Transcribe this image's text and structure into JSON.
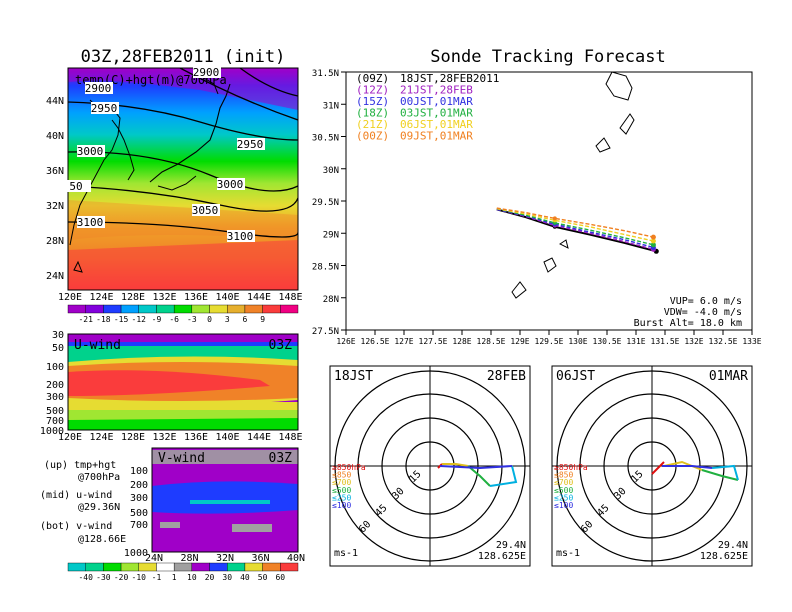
{
  "left_panel": {
    "title": "03Z,28FEB2011 (init)",
    "map_label": "temp(C)+hgt(m)@700hPa",
    "height_labels": [
      "2900",
      "2950",
      "2950",
      "3000",
      "3000",
      "3050",
      "3100",
      "3100",
      "50",
      "2900"
    ],
    "lat_ticks": [
      "44N",
      "40N",
      "36N",
      "32N",
      "28N",
      "24N"
    ],
    "lon_ticks": [
      "120E",
      "124E",
      "128E",
      "132E",
      "136E",
      "140E",
      "144E",
      "148E"
    ],
    "temp_colorbar": [
      "-21",
      "-18",
      "-15",
      "-12",
      "-9",
      "-6",
      "-3",
      "0",
      "3",
      "6",
      "9"
    ],
    "temp_colors": [
      "#a000c8",
      "#8200dc",
      "#1e3cff",
      "#00a0ff",
      "#00c8c8",
      "#00d28c",
      "#00dc00",
      "#a0e632",
      "#e6dc32",
      "#e6af2d",
      "#f08228",
      "#fa3c3c",
      "#f00082"
    ],
    "uwind_label": "U-wind",
    "uwind_time": "03Z",
    "uwind_levels": [
      "30",
      "50",
      "100",
      "200",
      "300",
      "500",
      "700",
      "1000"
    ],
    "uwind_lon_ticks": [
      "120E",
      "124E",
      "128E",
      "132E",
      "136E",
      "140E",
      "144E",
      "148E"
    ],
    "vwind_label": "V-wind",
    "vwind_time": "03Z",
    "vwind_levels": [
      "100",
      "200",
      "300",
      "500",
      "700",
      "1000"
    ],
    "vwind_lat_ticks": [
      "24N",
      "28N",
      "32N",
      "36N",
      "40N"
    ],
    "legend_lines": [
      "(up) tmp+hgt",
      "@700hPa",
      "(mid) u-wind",
      "@29.36N",
      "(bot) v-wind",
      "@128.66E"
    ],
    "wind_colorbar": [
      "-40",
      "-30",
      "-20",
      "-10",
      "-1",
      "1",
      "10",
      "20",
      "30",
      "40",
      "50",
      "60"
    ],
    "wind_colors": [
      "#00c8c8",
      "#00d28c",
      "#00dc00",
      "#a0e632",
      "#e6dc32",
      "#ffffff",
      "#a0a0a0",
      "#a000c8",
      "#1e3cff",
      "#00d28c",
      "#e6dc32",
      "#f08228",
      "#fa3c3c"
    ]
  },
  "tracking": {
    "title": "Sonde Tracking Forecast",
    "lat_ticks": [
      "31.5N",
      "31N",
      "30.5N",
      "30N",
      "29.5N",
      "29N",
      "28.5N",
      "28N",
      "27.5N"
    ],
    "lon_ticks": [
      "126E",
      "126.5E",
      "127E",
      "127.5E",
      "128E",
      "128.5E",
      "129E",
      "129.5E",
      "130E",
      "130.5E",
      "131E",
      "131.5E",
      "132E",
      "132.5E",
      "133E"
    ],
    "legend": [
      {
        "utc": "(09Z)",
        "local": "18JST,28FEB2011",
        "color": "#000000"
      },
      {
        "utc": "(12Z)",
        "local": "21JST,28FEB",
        "color": "#a020c0"
      },
      {
        "utc": "(15Z)",
        "local": "00JST,01MAR",
        "color": "#3030e0"
      },
      {
        "utc": "(18Z)",
        "local": "03JST,01MAR",
        "color": "#20b040"
      },
      {
        "utc": "(21Z)",
        "local": "06JST,01MAR",
        "color": "#f0d020"
      },
      {
        "utc": "(00Z)",
        "local": "09JST,01MAR",
        "color": "#f08020"
      }
    ],
    "params": [
      "VUP= 6.0 m/s",
      "VDW= -4.0 m/s",
      "Burst Alt= 18.0 km"
    ]
  },
  "hodographs": [
    {
      "left_label": "18JST",
      "right_label": "28FEB",
      "lat": "29.4N",
      "lon": "128.625E",
      "unit": "ms-1"
    },
    {
      "left_label": "06JST",
      "right_label": "01MAR",
      "lat": "29.4N",
      "lon": "128.625E",
      "unit": "ms-1"
    }
  ],
  "hodo_ring_labels": [
    "15",
    "30",
    "45",
    "60"
  ],
  "hodo_levels": [
    {
      "label": "≥850hPa",
      "color": "#e01010"
    },
    {
      "label": "≤850",
      "color": "#f08020"
    },
    {
      "label": "≤700",
      "color": "#e0c020"
    },
    {
      "label": "≤500",
      "color": "#20b040"
    },
    {
      "label": "≤250",
      "color": "#00b0e0"
    },
    {
      "label": "≤100",
      "color": "#3030e0"
    }
  ],
  "chart_data": {
    "type": "line",
    "title": "Sonde Tracking Forecast",
    "xlim": [
      126,
      133
    ],
    "ylim": [
      27.5,
      31.5
    ],
    "series": [
      {
        "name": "(09Z) 18JST,28FEB2011",
        "x": [
          128.6,
          129.1,
          129.6,
          130.2,
          130.8,
          131.35
        ],
        "y": [
          29.37,
          29.25,
          29.1,
          28.98,
          28.85,
          28.72
        ]
      },
      {
        "name": "(12Z) 21JST,28FEB",
        "x": [
          128.6,
          129.1,
          129.6,
          130.2,
          130.8,
          131.3
        ],
        "y": [
          29.37,
          29.26,
          29.12,
          29.0,
          28.87,
          28.75
        ]
      },
      {
        "name": "(15Z) 00JST,01MAR",
        "x": [
          128.6,
          129.1,
          129.6,
          130.2,
          130.8,
          131.3
        ],
        "y": [
          29.37,
          29.27,
          29.14,
          29.02,
          28.9,
          28.78
        ]
      },
      {
        "name": "(18Z) 03JST,01MAR",
        "x": [
          128.6,
          129.1,
          129.6,
          130.2,
          130.8,
          131.3
        ],
        "y": [
          29.38,
          29.28,
          29.16,
          29.05,
          28.93,
          28.82
        ]
      },
      {
        "name": "(21Z) 06JST,01MAR",
        "x": [
          128.6,
          129.1,
          129.6,
          130.2,
          130.8,
          131.3
        ],
        "y": [
          29.38,
          29.3,
          29.2,
          29.1,
          28.98,
          28.88
        ]
      },
      {
        "name": "(00Z) 09JST,01MAR",
        "x": [
          128.6,
          129.1,
          129.6,
          130.2,
          130.8,
          131.3
        ],
        "y": [
          29.39,
          29.32,
          29.23,
          29.14,
          29.04,
          28.94
        ]
      }
    ]
  }
}
